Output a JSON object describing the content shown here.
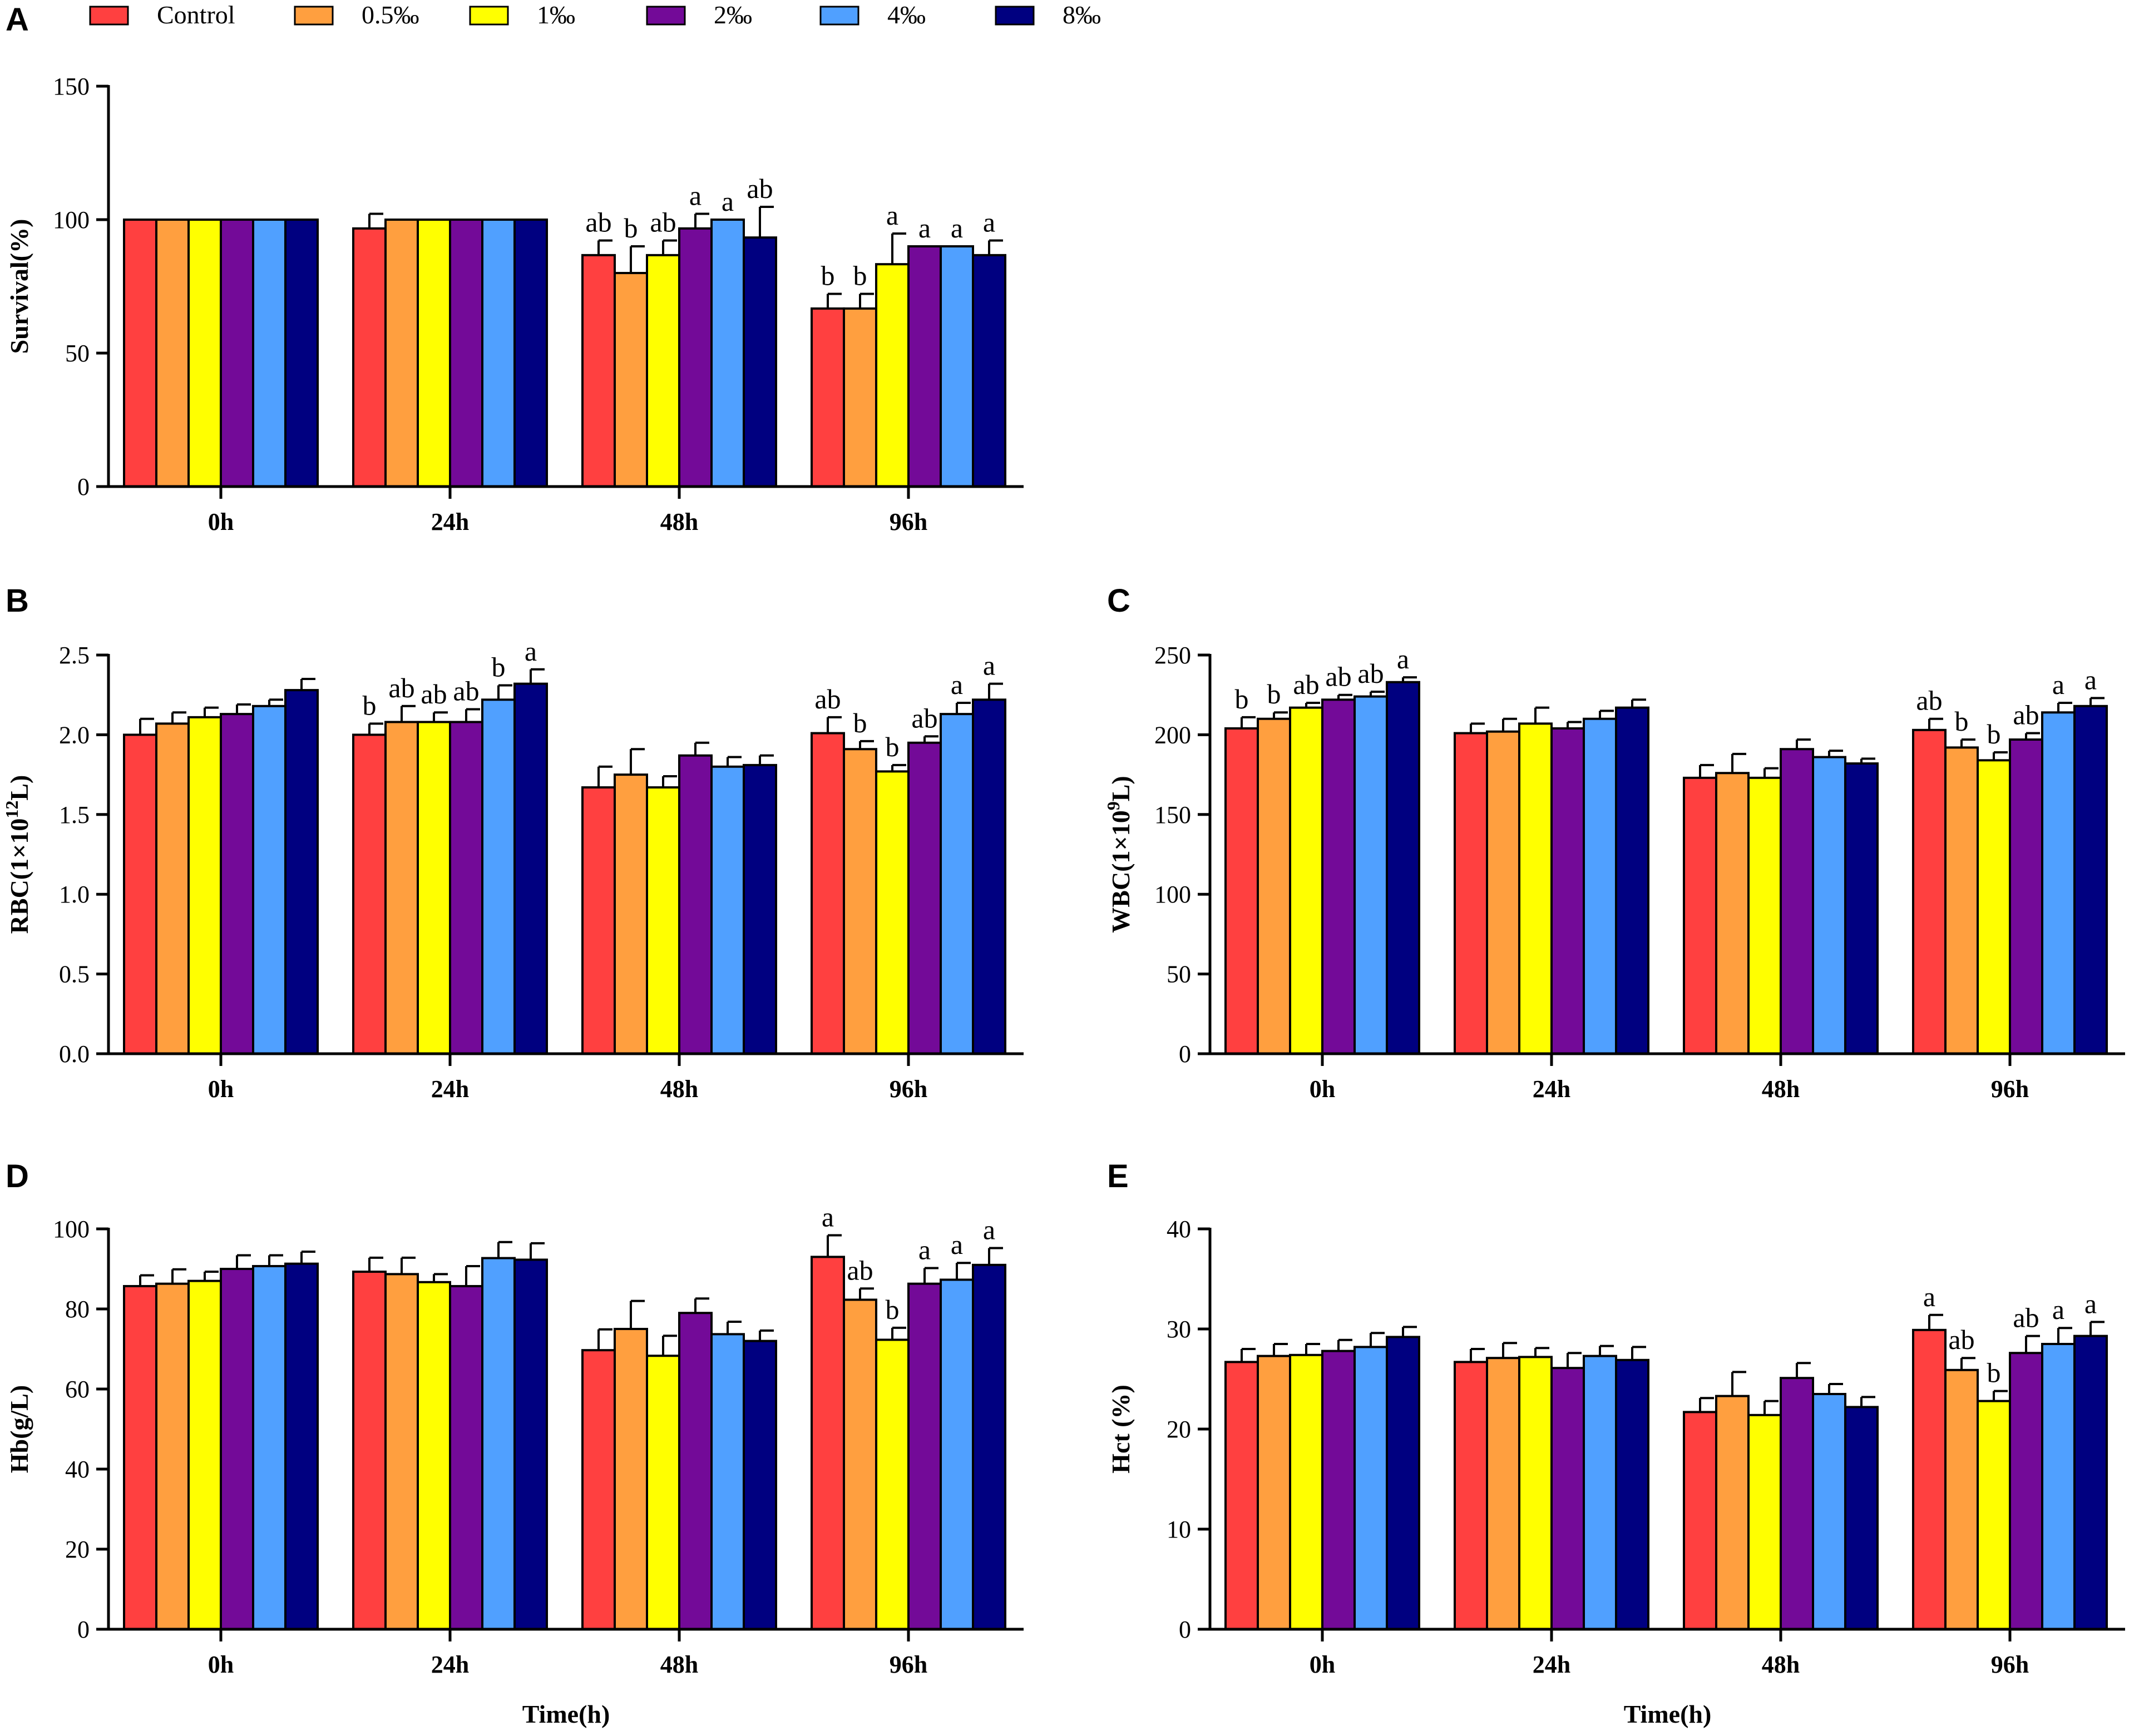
{
  "legend": [
    {
      "label": "Control",
      "color": "#FF4040"
    },
    {
      "label": "0.5‰",
      "color": "#FF9F3F"
    },
    {
      "label": "1‰",
      "color": "#FFFF00"
    },
    {
      "label": "2‰",
      "color": "#730A98"
    },
    {
      "label": "4‰",
      "color": "#50A0FF"
    },
    {
      "label": "8‰",
      "color": "#000080"
    }
  ],
  "chart_data": [
    {
      "panel": "A",
      "type": "bar",
      "title": "",
      "ylabel": "Survival(%)",
      "xlabel": "",
      "ylim": [
        0,
        150
      ],
      "yticks": [
        0,
        50,
        100,
        150
      ],
      "categories": [
        "0h",
        "24h",
        "48h",
        "96h"
      ],
      "series": [
        {
          "name": "Control",
          "values": [
            100,
            96.7,
            86.7,
            66.7
          ],
          "errors": [
            0,
            5.5,
            5.5,
            5.5
          ],
          "labels": [
            "",
            "",
            "ab",
            "b"
          ]
        },
        {
          "name": "0.5‰",
          "values": [
            100,
            100,
            80,
            66.7
          ],
          "errors": [
            0,
            0,
            10,
            5.5
          ],
          "labels": [
            "",
            "",
            "b",
            "b"
          ]
        },
        {
          "name": "1‰",
          "values": [
            100,
            100,
            86.7,
            83.3
          ],
          "errors": [
            0,
            0,
            5.5,
            11.5
          ],
          "labels": [
            "",
            "",
            "ab",
            "a"
          ]
        },
        {
          "name": "2‰",
          "values": [
            100,
            100,
            96.7,
            90
          ],
          "errors": [
            0,
            0,
            5.5,
            0
          ],
          "labels": [
            "",
            "",
            "a",
            "a"
          ]
        },
        {
          "name": "4‰",
          "values": [
            100,
            100,
            100,
            90
          ],
          "errors": [
            0,
            0,
            0,
            0
          ],
          "labels": [
            "",
            "",
            "a",
            "a"
          ]
        },
        {
          "name": "8‰",
          "values": [
            100,
            100,
            93.3,
            86.7
          ],
          "errors": [
            0,
            0,
            11.5,
            5.5
          ],
          "labels": [
            "",
            "",
            "ab",
            "a"
          ]
        }
      ]
    },
    {
      "panel": "B",
      "type": "bar",
      "title": "",
      "ylabel": "RBC(1×10",
      "ylabel_sup": "12",
      "ylabel_end": "L)",
      "xlabel": "",
      "ylim": [
        0,
        2.5
      ],
      "yticks": [
        "0.0",
        "0.5",
        "1.0",
        "1.5",
        "2.0",
        "2.5"
      ],
      "categories": [
        "0h",
        "24h",
        "48h",
        "96h"
      ],
      "series": [
        {
          "name": "Control",
          "values": [
            2.0,
            2.0,
            1.67,
            2.01
          ],
          "errors": [
            0.1,
            0.07,
            0.13,
            0.1
          ],
          "labels": [
            "",
            "b",
            "",
            "ab"
          ]
        },
        {
          "name": "0.5‰",
          "values": [
            2.07,
            2.08,
            1.75,
            1.91
          ],
          "errors": [
            0.07,
            0.1,
            0.16,
            0.05
          ],
          "labels": [
            "",
            "ab",
            "",
            "b"
          ]
        },
        {
          "name": "1‰",
          "values": [
            2.11,
            2.08,
            1.67,
            1.77
          ],
          "errors": [
            0.06,
            0.06,
            0.07,
            0.04
          ],
          "labels": [
            "",
            "ab",
            "",
            "b"
          ]
        },
        {
          "name": "2‰",
          "values": [
            2.13,
            2.08,
            1.87,
            1.95
          ],
          "errors": [
            0.06,
            0.08,
            0.08,
            0.04
          ],
          "labels": [
            "",
            "ab",
            "",
            "ab"
          ]
        },
        {
          "name": "4‰",
          "values": [
            2.18,
            2.22,
            1.8,
            2.13
          ],
          "errors": [
            0.04,
            0.09,
            0.06,
            0.07
          ],
          "labels": [
            "",
            "b",
            "",
            "a"
          ]
        },
        {
          "name": "8‰",
          "values": [
            2.28,
            2.32,
            1.81,
            2.22
          ],
          "errors": [
            0.07,
            0.09,
            0.06,
            0.1
          ],
          "labels": [
            "",
            "a",
            "",
            "a"
          ]
        }
      ]
    },
    {
      "panel": "C",
      "type": "bar",
      "title": "",
      "ylabel": "WBC(1×10",
      "ylabel_sup": "9",
      "ylabel_end": "L)",
      "xlabel": "",
      "ylim": [
        0,
        250
      ],
      "yticks": [
        0,
        50,
        100,
        150,
        200,
        250
      ],
      "categories": [
        "0h",
        "24h",
        "48h",
        "96h"
      ],
      "series": [
        {
          "name": "Control",
          "values": [
            204,
            201,
            173,
            203
          ],
          "errors": [
            7,
            6,
            8,
            7
          ],
          "labels": [
            "b",
            "",
            "",
            "ab"
          ]
        },
        {
          "name": "0.5‰",
          "values": [
            210,
            202,
            176,
            192
          ],
          "errors": [
            4,
            8,
            12,
            5
          ],
          "labels": [
            "b",
            "",
            "",
            "b"
          ]
        },
        {
          "name": "1‰",
          "values": [
            217,
            207,
            173,
            184
          ],
          "errors": [
            3,
            10,
            6,
            5
          ],
          "labels": [
            "ab",
            "",
            "",
            "b"
          ]
        },
        {
          "name": "2‰",
          "values": [
            222,
            204,
            191,
            197
          ],
          "errors": [
            3,
            4,
            6,
            4
          ],
          "labels": [
            "ab",
            "",
            "",
            "ab"
          ]
        },
        {
          "name": "4‰",
          "values": [
            224,
            210,
            186,
            214
          ],
          "errors": [
            3,
            5,
            4,
            6
          ],
          "labels": [
            "ab",
            "",
            "",
            "a"
          ]
        },
        {
          "name": "8‰",
          "values": [
            233,
            217,
            182,
            218
          ],
          "errors": [
            3,
            5,
            3,
            5
          ],
          "labels": [
            "a",
            "",
            "",
            "a"
          ]
        }
      ]
    },
    {
      "panel": "D",
      "type": "bar",
      "title": "",
      "ylabel": "Hb(g/L)",
      "xlabel": "Time(h)",
      "ylim": [
        0,
        100
      ],
      "yticks": [
        0,
        20,
        40,
        60,
        80,
        100
      ],
      "categories": [
        "0h",
        "24h",
        "48h",
        "96h"
      ],
      "series": [
        {
          "name": "Control",
          "values": [
            85.7,
            89.3,
            69.7,
            93.0
          ],
          "errors": [
            2.7,
            3.5,
            5.2,
            5.4
          ],
          "labels": [
            "",
            "",
            "",
            "a"
          ]
        },
        {
          "name": "0.5‰",
          "values": [
            86.3,
            88.7,
            75.0,
            82.3
          ],
          "errors": [
            3.6,
            4.1,
            7.0,
            2.8
          ],
          "labels": [
            "",
            "",
            "",
            "ab"
          ]
        },
        {
          "name": "1‰",
          "values": [
            87.0,
            86.7,
            68.3,
            72.3
          ],
          "errors": [
            2.3,
            2.0,
            5.0,
            3.0
          ],
          "labels": [
            "",
            "",
            "",
            "b"
          ]
        },
        {
          "name": "2‰",
          "values": [
            90.0,
            85.7,
            79.0,
            86.3
          ],
          "errors": [
            3.4,
            5.0,
            3.6,
            3.9
          ],
          "labels": [
            "",
            "",
            "",
            "a"
          ]
        },
        {
          "name": "4‰",
          "values": [
            90.7,
            92.7,
            73.7,
            87.3
          ],
          "errors": [
            2.7,
            4.0,
            3.1,
            4.2
          ],
          "labels": [
            "",
            "",
            "",
            "a"
          ]
        },
        {
          "name": "8‰",
          "values": [
            91.3,
            92.3,
            72.0,
            91.0
          ],
          "errors": [
            3.0,
            4.1,
            2.6,
            4.2
          ],
          "labels": [
            "",
            "",
            "",
            "a"
          ]
        }
      ]
    },
    {
      "panel": "E",
      "type": "bar",
      "title": "",
      "ylabel": "Hct (%)",
      "xlabel": "Time(h)",
      "ylim": [
        0,
        40
      ],
      "yticks": [
        0,
        10,
        20,
        30,
        40
      ],
      "categories": [
        "0h",
        "24h",
        "48h",
        "96h"
      ],
      "series": [
        {
          "name": "Control",
          "values": [
            26.7,
            26.7,
            21.7,
            29.9
          ],
          "errors": [
            1.3,
            1.3,
            1.4,
            1.5
          ],
          "labels": [
            "",
            "",
            "",
            "a"
          ]
        },
        {
          "name": "0.5‰",
          "values": [
            27.3,
            27.1,
            23.3,
            25.9
          ],
          "errors": [
            1.2,
            1.5,
            2.4,
            1.2
          ],
          "labels": [
            "",
            "",
            "",
            "ab"
          ]
        },
        {
          "name": "1‰",
          "values": [
            27.4,
            27.2,
            21.4,
            22.8
          ],
          "errors": [
            1.1,
            0.9,
            1.4,
            1.0
          ],
          "labels": [
            "",
            "",
            "",
            "b"
          ]
        },
        {
          "name": "2‰",
          "values": [
            27.8,
            26.1,
            25.1,
            27.6
          ],
          "errors": [
            1.1,
            1.5,
            1.5,
            1.7
          ],
          "labels": [
            "",
            "",
            "",
            "ab"
          ]
        },
        {
          "name": "4‰",
          "values": [
            28.2,
            27.3,
            23.5,
            28.5
          ],
          "errors": [
            1.4,
            1.0,
            1.0,
            1.6
          ],
          "labels": [
            "",
            "",
            "",
            "a"
          ]
        },
        {
          "name": "8‰",
          "values": [
            29.2,
            26.9,
            22.2,
            29.3
          ],
          "errors": [
            1.0,
            1.3,
            1.0,
            1.4
          ],
          "labels": [
            "",
            "",
            "",
            "a"
          ]
        }
      ]
    }
  ]
}
